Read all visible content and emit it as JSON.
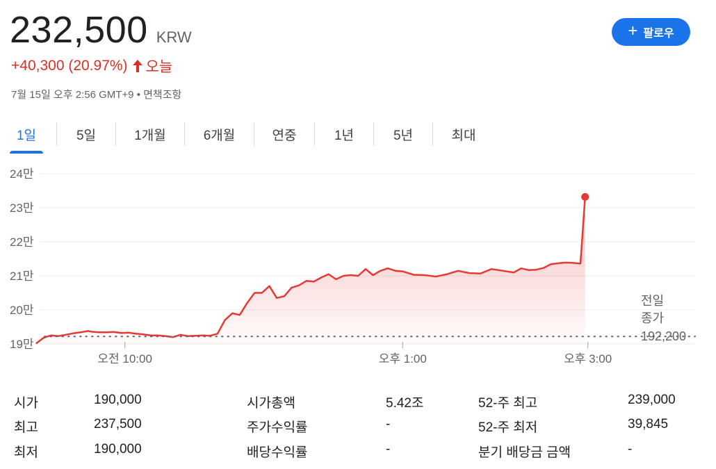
{
  "header": {
    "price": "232,500",
    "currency": "KRW",
    "change": "+40,300 (20.97%)",
    "change_period": "오늘",
    "timestamp": "7월 15일 오후 2:56 GMT+9",
    "disclaimer": "면책조항",
    "accent_color": "#d93025"
  },
  "follow_button": {
    "label": "팔로우",
    "color": "#1a73e8"
  },
  "tabs": [
    {
      "label": "1일",
      "active": true
    },
    {
      "label": "5일"
    },
    {
      "label": "1개월"
    },
    {
      "label": "6개월"
    },
    {
      "label": "연중"
    },
    {
      "label": "1년"
    },
    {
      "label": "5년"
    },
    {
      "label": "최대"
    }
  ],
  "chart_data": {
    "type": "area",
    "y_tick_labels": [
      "24만",
      "23만",
      "22만",
      "21만",
      "20만",
      "19만"
    ],
    "y_ticks": [
      240000,
      230000,
      220000,
      210000,
      200000,
      190000
    ],
    "ylim": [
      190000,
      240000
    ],
    "x_tick_labels": [
      "오전 10:00",
      "오후 1:00",
      "오후 3:00"
    ],
    "x_ticks": [
      9.96,
      12.96,
      14.96
    ],
    "xlim": [
      9.0,
      16.0
    ],
    "previous_close_label_line1": "전일",
    "previous_close_label_line2": "종가",
    "previous_close_value": "192,200",
    "previous_close": 192200,
    "line_color": "#e53935",
    "series": [
      {
        "x": [
          9.0,
          9.08,
          9.16,
          9.24,
          9.32,
          9.4,
          9.48,
          9.56,
          9.6,
          9.68,
          9.76,
          9.84,
          9.92,
          10.0,
          10.08,
          10.16,
          10.24,
          10.32,
          10.4,
          10.48,
          10.56,
          10.64,
          10.72,
          10.8,
          10.88,
          10.96,
          11.04,
          11.12,
          11.2,
          11.28,
          11.36,
          11.44,
          11.52,
          11.6,
          11.68,
          11.76,
          11.84,
          11.92,
          12.0,
          12.08,
          12.16,
          12.24,
          12.32,
          12.4,
          12.48,
          12.56,
          12.64,
          12.72,
          12.8,
          12.88,
          12.96,
          13.08,
          13.2,
          13.32,
          13.44,
          13.56,
          13.68,
          13.8,
          13.92,
          14.04,
          14.16,
          14.24,
          14.32,
          14.4,
          14.48,
          14.56,
          14.64,
          14.72,
          14.8,
          14.88,
          14.93
        ],
        "y": [
          190100,
          191800,
          192500,
          192300,
          192700,
          193100,
          193400,
          193800,
          193600,
          193400,
          193400,
          193500,
          193200,
          193300,
          193000,
          192800,
          192500,
          192500,
          192300,
          192000,
          192700,
          192300,
          192400,
          192500,
          192400,
          193000,
          197000,
          199000,
          198500,
          202000,
          205000,
          205000,
          207000,
          203500,
          204000,
          206500,
          207200,
          208500,
          208300,
          209500,
          210500,
          209000,
          210000,
          210200,
          210000,
          212000,
          210200,
          211500,
          212200,
          211500,
          211300,
          210300,
          210200,
          209800,
          210500,
          211500,
          210800,
          210700,
          212000,
          211500,
          211000,
          212200,
          211700,
          211800,
          212300,
          213400,
          213700,
          213900,
          213800,
          213600,
          233200
        ]
      }
    ]
  },
  "stats": {
    "col1": [
      {
        "label": "시가",
        "value": "190,000"
      },
      {
        "label": "최고",
        "value": "237,500"
      },
      {
        "label": "최저",
        "value": "190,000"
      }
    ],
    "col2": [
      {
        "label": "시가총액",
        "value": "5.42조"
      },
      {
        "label": "주가수익률",
        "value": "-"
      },
      {
        "label": "배당수익률",
        "value": "-"
      }
    ],
    "col3": [
      {
        "label": "52-주 최고",
        "value": "239,000"
      },
      {
        "label": "52-주 최저",
        "value": "39,845"
      },
      {
        "label": "분기 배당금 금액",
        "value": "-"
      }
    ]
  }
}
